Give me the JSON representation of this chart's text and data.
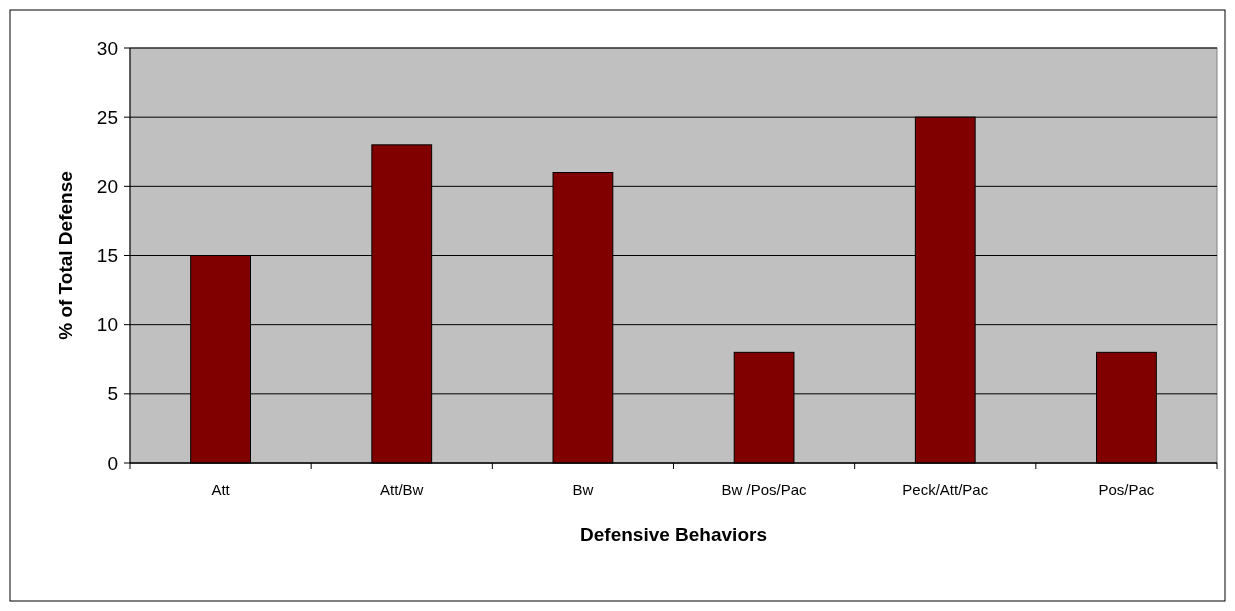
{
  "chart_data": {
    "type": "bar",
    "xlabel": "Defensive Behaviors",
    "ylabel": "% of Total Defense",
    "categories": [
      "Att",
      "Att/Bw",
      "Bw",
      "Bw /Pos/Pac",
      "Peck/Att/Pac",
      "Pos/Pac"
    ],
    "values": [
      15,
      23,
      21,
      8,
      25,
      8
    ],
    "color": "#800000",
    "ylim": [
      0,
      30
    ],
    "yticks": [
      0,
      5,
      10,
      15,
      20,
      25,
      30
    ],
    "grid": "y"
  }
}
